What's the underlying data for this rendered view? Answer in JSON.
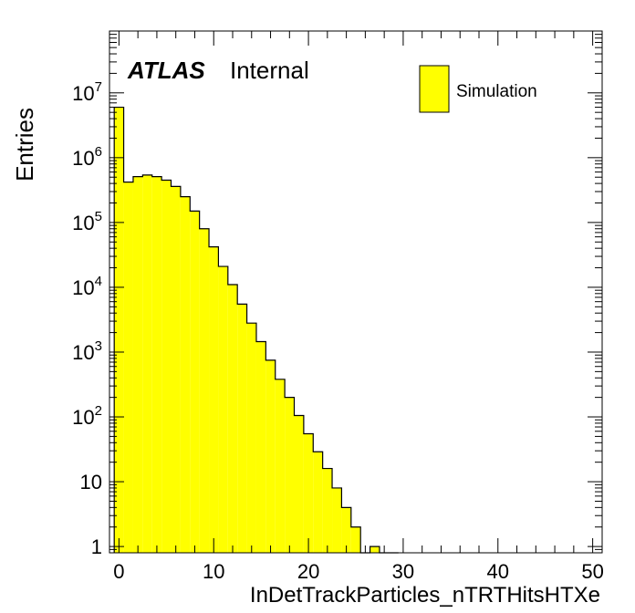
{
  "chart_data": {
    "type": "bar",
    "histogram": true,
    "ylabel": "Entries",
    "xlabel": "InDetTrackParticles_nTRTHitsHTXe",
    "xlim": [
      -1,
      51
    ],
    "ylim": [
      0.8,
      90000000
    ],
    "log_y": true,
    "grid": false,
    "legend_position": "top-right",
    "bar_color": "#ffff00",
    "atlas_label": "ATLAS",
    "atlas_sublabel": "Internal",
    "series": [
      {
        "name": "Simulation",
        "bins": [
          {
            "x": 0,
            "value": 6000000
          },
          {
            "x": 1,
            "value": 420000
          },
          {
            "x": 2,
            "value": 510000
          },
          {
            "x": 3,
            "value": 540000
          },
          {
            "x": 4,
            "value": 510000
          },
          {
            "x": 5,
            "value": 450000
          },
          {
            "x": 6,
            "value": 360000
          },
          {
            "x": 7,
            "value": 250000
          },
          {
            "x": 8,
            "value": 150000
          },
          {
            "x": 9,
            "value": 80000
          },
          {
            "x": 10,
            "value": 42000
          },
          {
            "x": 11,
            "value": 21000
          },
          {
            "x": 12,
            "value": 11000
          },
          {
            "x": 13,
            "value": 5500
          },
          {
            "x": 14,
            "value": 2800
          },
          {
            "x": 15,
            "value": 1450
          },
          {
            "x": 16,
            "value": 750
          },
          {
            "x": 17,
            "value": 380
          },
          {
            "x": 18,
            "value": 200
          },
          {
            "x": 19,
            "value": 105
          },
          {
            "x": 20,
            "value": 55
          },
          {
            "x": 21,
            "value": 29
          },
          {
            "x": 22,
            "value": 16
          },
          {
            "x": 23,
            "value": 8
          },
          {
            "x": 24,
            "value": 4
          },
          {
            "x": 25,
            "value": 2
          },
          {
            "x": 26,
            "value": 0
          },
          {
            "x": 27,
            "value": 1
          },
          {
            "x": 28,
            "value": 0
          },
          {
            "x": 29,
            "value": 0.8
          }
        ]
      }
    ],
    "x_ticks": [
      {
        "value": 0,
        "label": "0"
      },
      {
        "value": 10,
        "label": "10"
      },
      {
        "value": 20,
        "label": "20"
      },
      {
        "value": 30,
        "label": "30"
      },
      {
        "value": 40,
        "label": "40"
      },
      {
        "value": 50,
        "label": "50"
      }
    ],
    "y_ticks": [
      {
        "value": 1,
        "base": "1",
        "exp": ""
      },
      {
        "value": 10,
        "base": "10",
        "exp": ""
      },
      {
        "value": 100,
        "base": "10",
        "exp": "2"
      },
      {
        "value": 1000,
        "base": "10",
        "exp": "3"
      },
      {
        "value": 10000,
        "base": "10",
        "exp": "4"
      },
      {
        "value": 100000,
        "base": "10",
        "exp": "5"
      },
      {
        "value": 1000000,
        "base": "10",
        "exp": "6"
      },
      {
        "value": 10000000,
        "base": "10",
        "exp": "7"
      }
    ]
  }
}
